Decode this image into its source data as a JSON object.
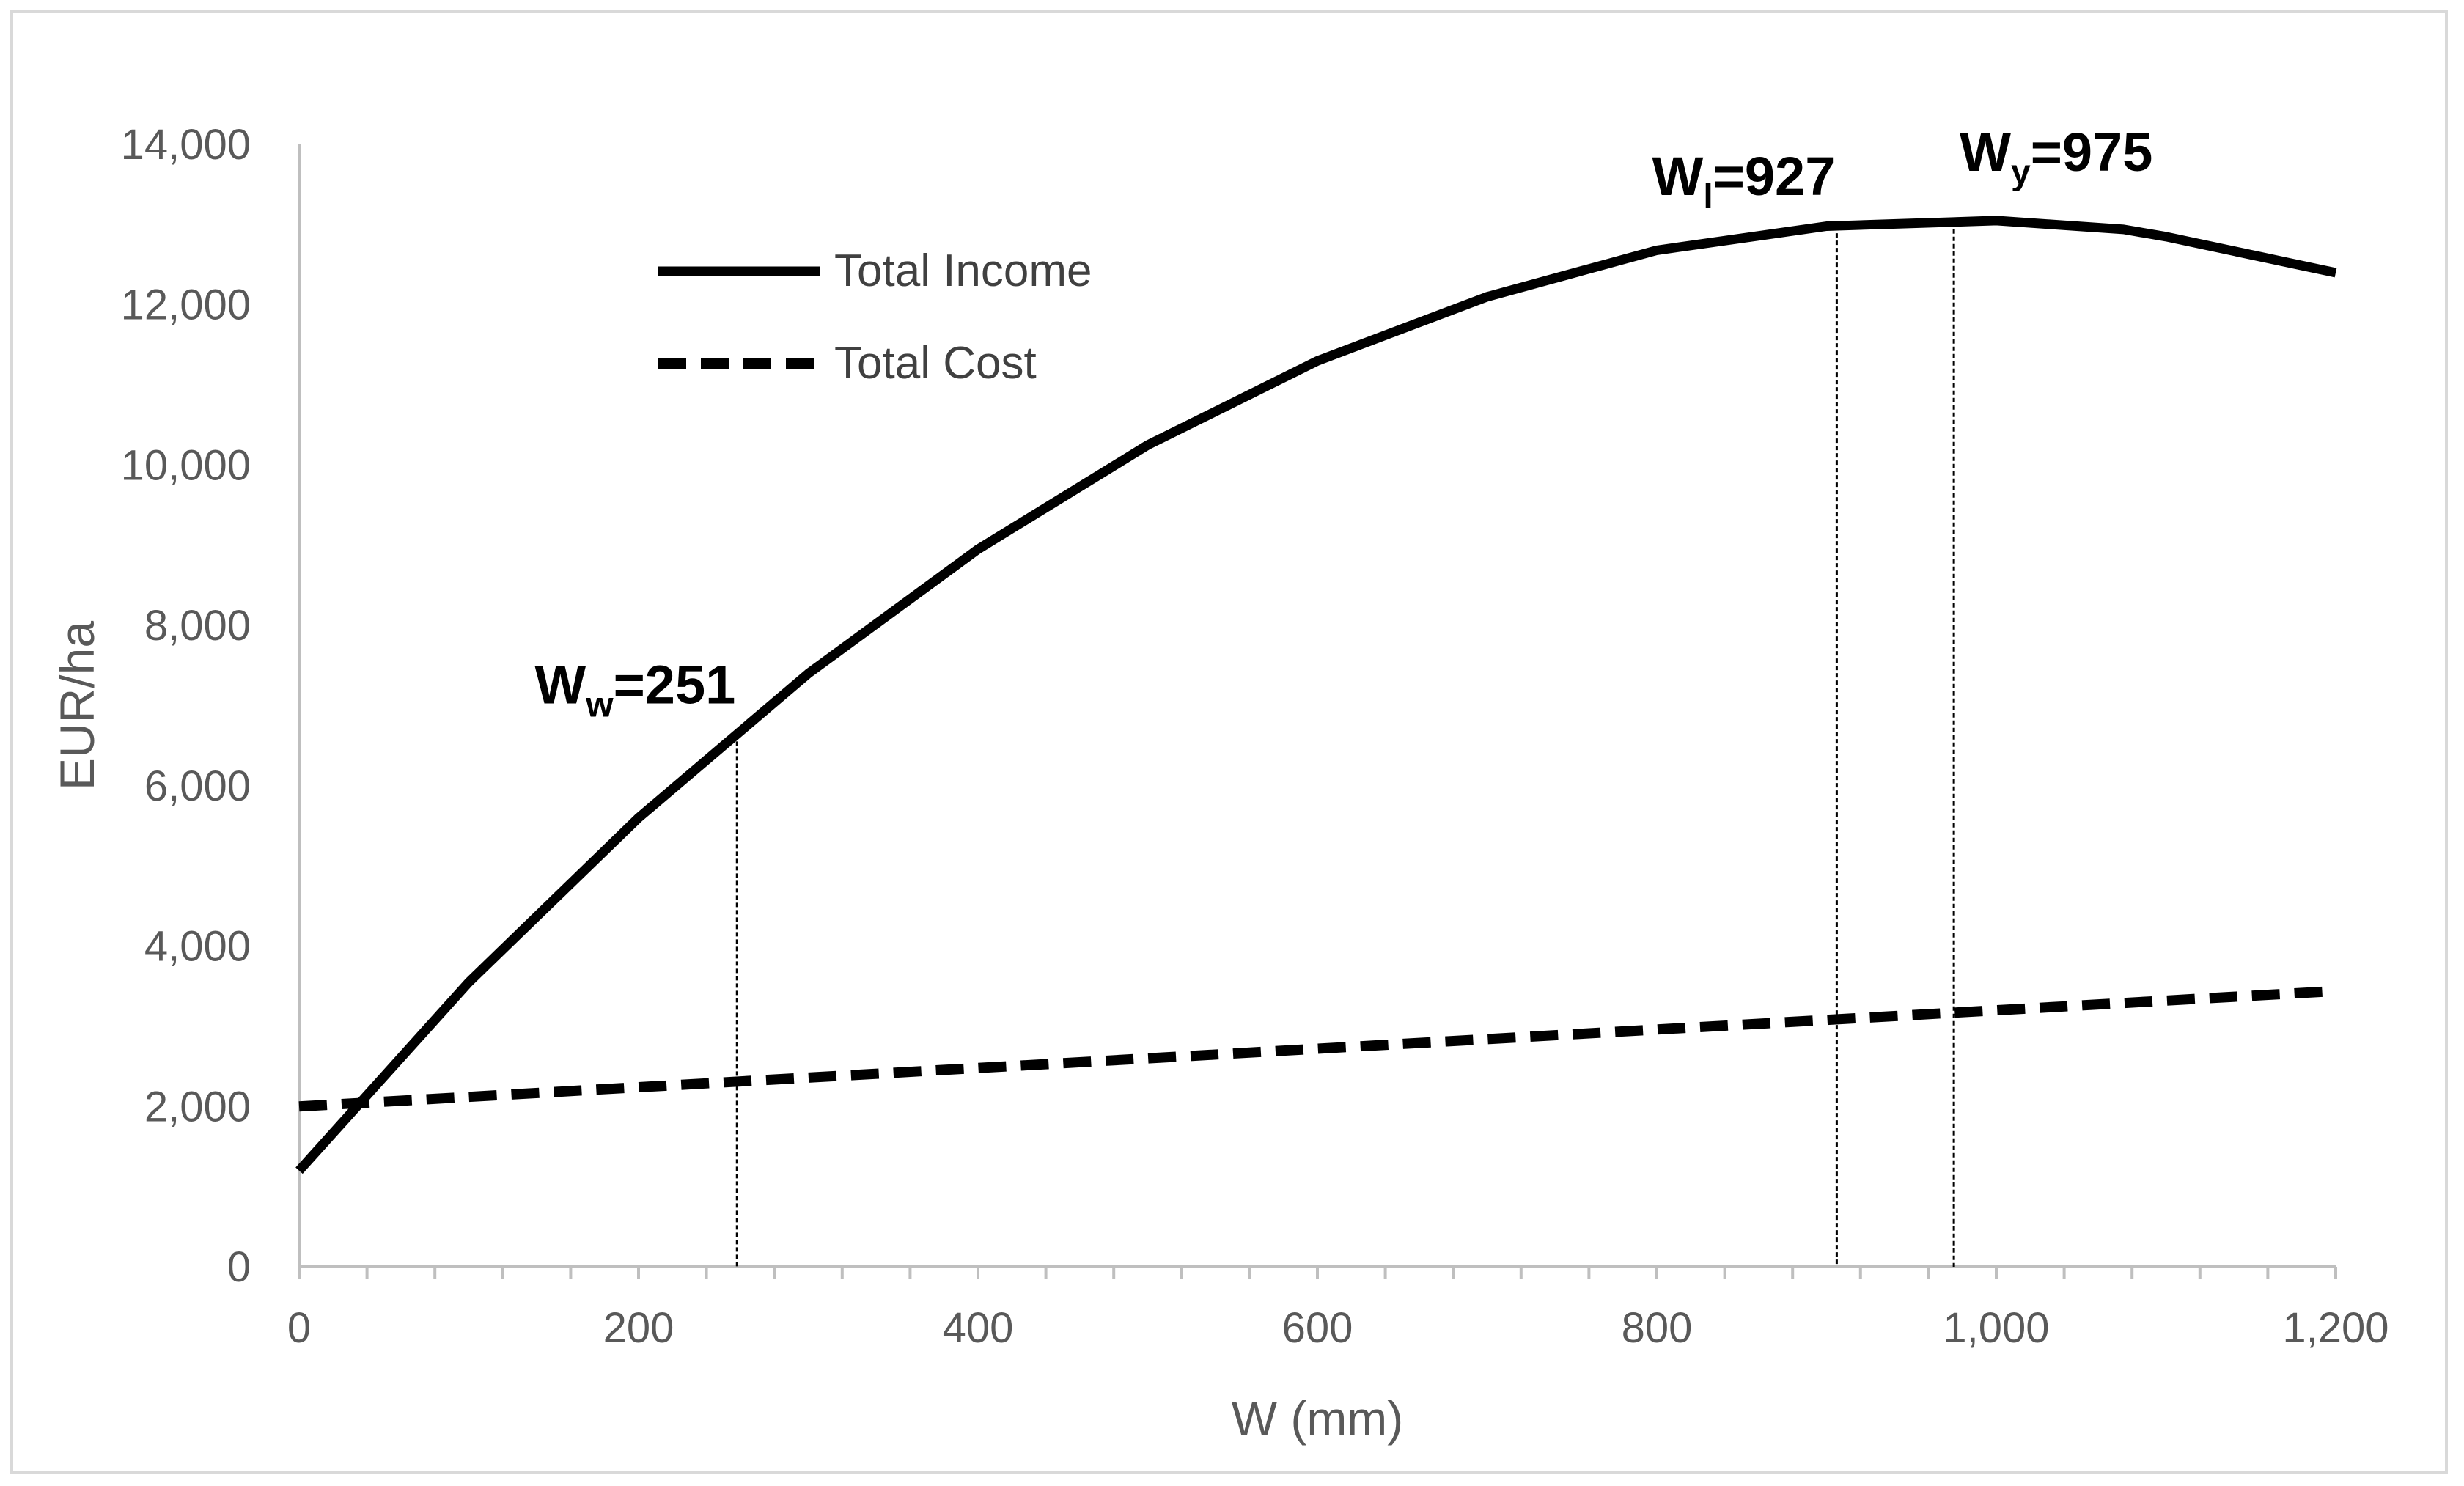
{
  "chart_data": {
    "type": "line",
    "title": "",
    "xlabel": "W (mm)",
    "ylabel": "EUR/ha",
    "xlim": [
      0,
      1200
    ],
    "ylim": [
      0,
      14000
    ],
    "x_ticks": [
      0,
      200,
      400,
      600,
      800,
      1000,
      1200
    ],
    "x_tick_labels": [
      "0",
      "200",
      "400",
      "600",
      "800",
      "1,000",
      "1,200"
    ],
    "x_minor_step": 40,
    "y_ticks": [
      0,
      2000,
      4000,
      6000,
      8000,
      10000,
      12000,
      14000
    ],
    "y_tick_labels": [
      "0",
      "2,000",
      "4,000",
      "6,000",
      "8,000",
      "10,000",
      "12,000",
      "14,000"
    ],
    "grid": false,
    "legend_position": "top-left",
    "series": [
      {
        "name": "Total Income",
        "style": "solid",
        "color": "#000000",
        "x": [
          0,
          100,
          200,
          300,
          400,
          500,
          600,
          700,
          800,
          900,
          1000,
          1075,
          1100,
          1200
        ],
        "y": [
          1200,
          3550,
          5600,
          7400,
          8950,
          10250,
          11300,
          12100,
          12680,
          12980,
          13050,
          12940,
          12850,
          12400
        ]
      },
      {
        "name": "Total Cost",
        "style": "dashed",
        "color": "#000000",
        "x": [
          0,
          100,
          200,
          300,
          400,
          500,
          600,
          700,
          800,
          900,
          1000,
          1100,
          1200
        ],
        "y": [
          2000,
          2120,
          2240,
          2360,
          2480,
          2600,
          2720,
          2840,
          2960,
          3080,
          3200,
          3320,
          3440
        ]
      }
    ],
    "annotations": [
      {
        "main": "W",
        "sub": "w",
        "rest": "=251",
        "x": 258,
        "position": "above-left"
      },
      {
        "main": "W",
        "sub": "l",
        "rest": "=927",
        "x": 906,
        "position": "above-left"
      },
      {
        "main": "W",
        "sub": "y",
        "rest": "=975",
        "x": 975,
        "position": "above-right"
      }
    ]
  }
}
